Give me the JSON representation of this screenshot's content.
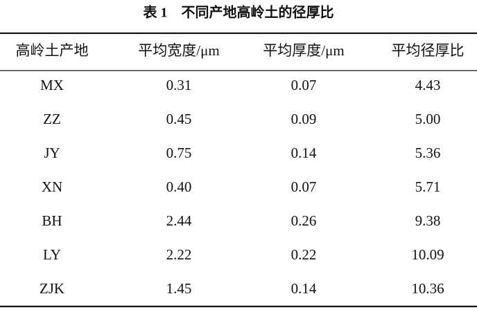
{
  "table": {
    "title": "表 1　不同产地高岭土的径厚比",
    "header": [
      "高岭土产地",
      "平均宽度/μm",
      "平均厚度/μm",
      "平均径厚比"
    ],
    "rows": [
      [
        "MX",
        "0.31",
        "0.07",
        "4.43"
      ],
      [
        "ZZ",
        "0.45",
        "0.09",
        "5.00"
      ],
      [
        "JY",
        "0.75",
        "0.14",
        "5.36"
      ],
      [
        "XN",
        "0.40",
        "0.07",
        "5.71"
      ],
      [
        "BH",
        "2.44",
        "0.26",
        "9.38"
      ],
      [
        "LY",
        "2.22",
        "0.22",
        "10.09"
      ],
      [
        "ZJK",
        "1.45",
        "0.14",
        "10.36"
      ]
    ]
  }
}
